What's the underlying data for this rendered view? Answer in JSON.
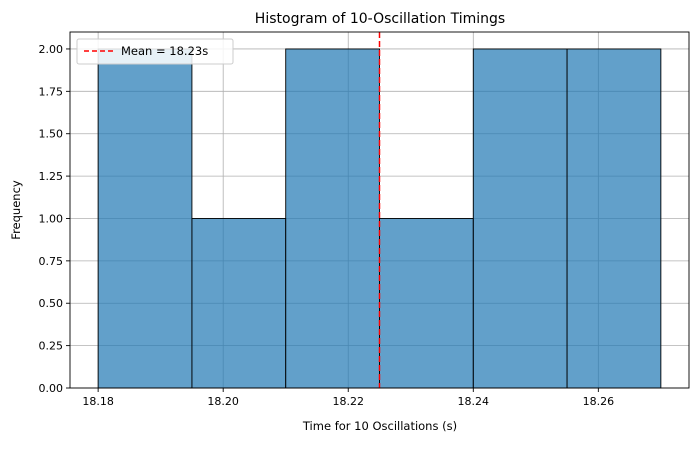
{
  "chart_data": {
    "type": "bar",
    "title": "Histogram of 10-Oscillation Timings",
    "xlabel": "Time for 10 Oscillations (s)",
    "ylabel": "Frequency",
    "bins": [
      {
        "start": 18.18,
        "end": 18.195,
        "count": 2
      },
      {
        "start": 18.195,
        "end": 18.21,
        "count": 1
      },
      {
        "start": 18.21,
        "end": 18.225,
        "count": 2
      },
      {
        "start": 18.225,
        "end": 18.24,
        "count": 1
      },
      {
        "start": 18.24,
        "end": 18.255,
        "count": 2
      },
      {
        "start": 18.255,
        "end": 18.27,
        "count": 2
      }
    ],
    "xlim": [
      18.1755,
      18.2745
    ],
    "ylim": [
      0,
      2.1
    ],
    "xticks": [
      18.18,
      18.2,
      18.22,
      18.24,
      18.26
    ],
    "xtick_labels": [
      "18.18",
      "18.20",
      "18.22",
      "18.24",
      "18.26"
    ],
    "yticks": [
      0,
      0.25,
      0.5,
      0.75,
      1.0,
      1.25,
      1.5,
      1.75,
      2.0
    ],
    "ytick_labels": [
      "0.00",
      "0.25",
      "0.50",
      "0.75",
      "1.00",
      "1.25",
      "1.50",
      "1.75",
      "2.00"
    ],
    "mean_line": {
      "value": 18.225,
      "label": "Mean = 18.23s",
      "color": "#ff0000"
    },
    "bar_color": "#1f77b4",
    "bar_opacity": 0.7,
    "grid": true,
    "legend_position": "upper-left"
  }
}
